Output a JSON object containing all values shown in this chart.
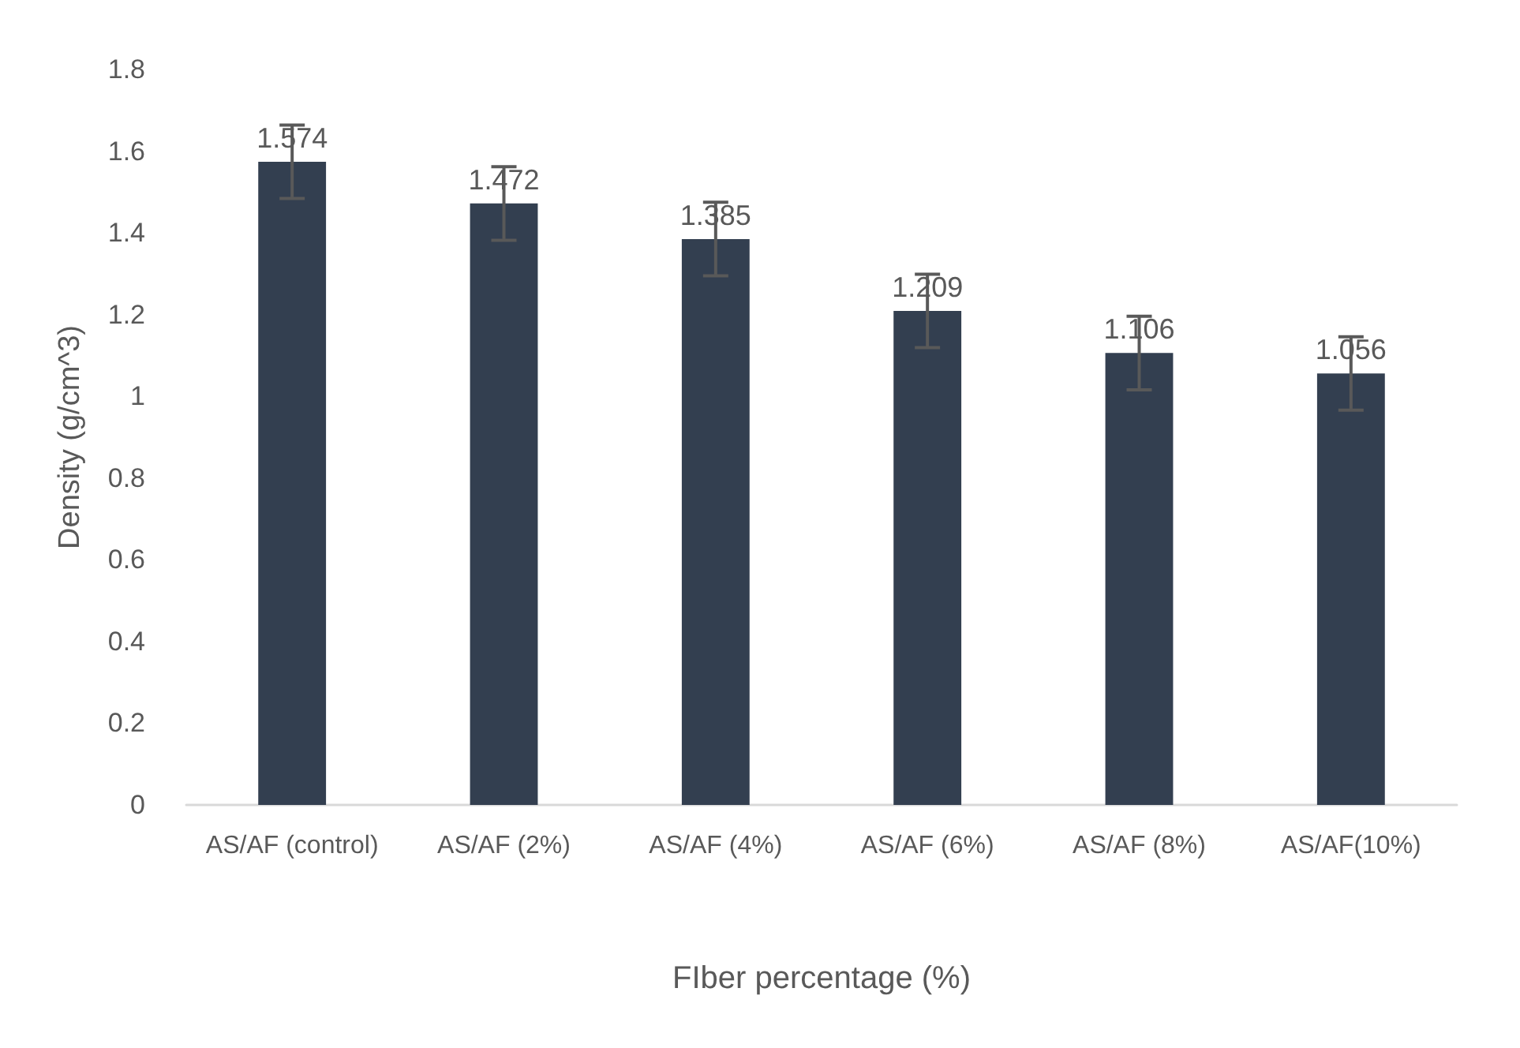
{
  "chart_data": {
    "type": "bar",
    "xlabel": "FIber percentage (%)",
    "ylabel": "Density (g/cm^3)",
    "categories": [
      "AS/AF (control)",
      "AS/AF (2%)",
      "AS/AF (4%)",
      "AS/AF (6%)",
      "AS/AF (8%)",
      "AS/AF(10%)"
    ],
    "values": [
      1.574,
      1.472,
      1.385,
      1.209,
      1.106,
      1.056
    ],
    "errors": [
      0.09,
      0.09,
      0.09,
      0.09,
      0.09,
      0.09
    ],
    "color": "#333f50",
    "data_labels": true,
    "ylim": [
      0,
      1.8
    ],
    "yticks": [
      0,
      0.2,
      0.4,
      0.6,
      0.8,
      1,
      1.2,
      1.4,
      1.6,
      1.8
    ]
  }
}
